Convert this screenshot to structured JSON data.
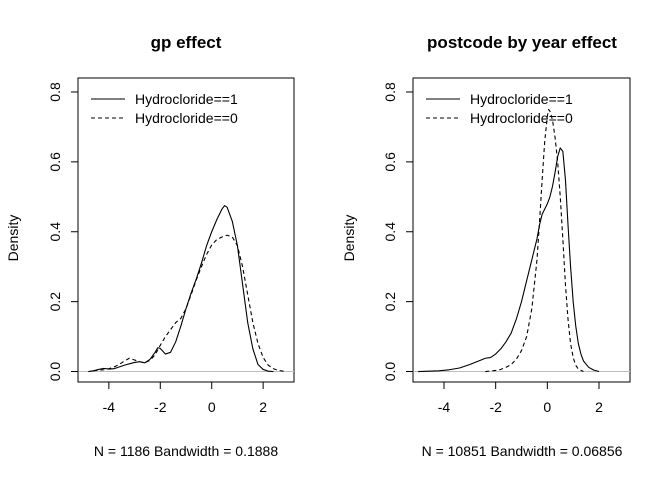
{
  "chart_data": [
    {
      "type": "line",
      "title": "gp effect",
      "xlabel": "N = 1186   Bandwidth = 0.1888",
      "ylabel": "Density",
      "xlim": [
        -5.2,
        3.2
      ],
      "ylim": [
        -0.03,
        0.84
      ],
      "xticks": [
        "-4",
        "-2",
        "0",
        "2"
      ],
      "yticks": [
        "0.0",
        "0.2",
        "0.4",
        "0.6",
        "0.8"
      ],
      "grid": false,
      "baseline": 0,
      "legend": {
        "position": "top-left",
        "entries": [
          "Hydrocloride==1",
          "Hydrocloride==0"
        ]
      },
      "series": [
        {
          "name": "Hydrocloride==1",
          "style": "solid",
          "x": [
            -4.8,
            -4.6,
            -4.4,
            -4.2,
            -4.0,
            -3.8,
            -3.6,
            -3.4,
            -3.2,
            -3.0,
            -2.8,
            -2.6,
            -2.4,
            -2.2,
            -2.1,
            -2.0,
            -1.9,
            -1.8,
            -1.6,
            -1.4,
            -1.2,
            -1.0,
            -0.8,
            -0.6,
            -0.4,
            -0.2,
            0.0,
            0.2,
            0.4,
            0.5,
            0.6,
            0.8,
            1.0,
            1.2,
            1.4,
            1.6,
            1.8,
            2.0,
            2.2,
            2.4
          ],
          "y": [
            0.0,
            0.002,
            0.006,
            0.009,
            0.007,
            0.008,
            0.013,
            0.018,
            0.022,
            0.026,
            0.028,
            0.025,
            0.035,
            0.055,
            0.068,
            0.066,
            0.058,
            0.05,
            0.055,
            0.085,
            0.13,
            0.18,
            0.225,
            0.265,
            0.31,
            0.36,
            0.4,
            0.435,
            0.465,
            0.475,
            0.47,
            0.43,
            0.36,
            0.25,
            0.14,
            0.065,
            0.02,
            0.006,
            0.001,
            0.0
          ]
        },
        {
          "name": "Hydrocloride==0",
          "style": "dashed",
          "x": [
            -4.6,
            -4.4,
            -4.2,
            -4.0,
            -3.8,
            -3.6,
            -3.4,
            -3.2,
            -3.0,
            -2.8,
            -2.6,
            -2.4,
            -2.2,
            -2.0,
            -1.8,
            -1.6,
            -1.4,
            -1.2,
            -1.0,
            -0.8,
            -0.6,
            -0.4,
            -0.2,
            0.0,
            0.2,
            0.4,
            0.6,
            0.8,
            1.0,
            1.2,
            1.4,
            1.6,
            1.8,
            2.0,
            2.2,
            2.4,
            2.6,
            2.8
          ],
          "y": [
            0.002,
            0.004,
            0.005,
            0.008,
            0.013,
            0.02,
            0.03,
            0.038,
            0.033,
            0.028,
            0.025,
            0.032,
            0.048,
            0.075,
            0.1,
            0.12,
            0.14,
            0.152,
            0.18,
            0.22,
            0.262,
            0.3,
            0.335,
            0.362,
            0.378,
            0.385,
            0.39,
            0.385,
            0.36,
            0.3,
            0.22,
            0.14,
            0.08,
            0.04,
            0.018,
            0.008,
            0.003,
            0.001
          ]
        }
      ]
    },
    {
      "type": "line",
      "title": "postcode by year effect",
      "xlabel": "N = 10851   Bandwidth = 0.06856",
      "ylabel": "Density",
      "xlim": [
        -5.2,
        3.2
      ],
      "ylim": [
        -0.03,
        0.84
      ],
      "xticks": [
        "-4",
        "-2",
        "0",
        "2"
      ],
      "yticks": [
        "0.0",
        "0.2",
        "0.4",
        "0.6",
        "0.8"
      ],
      "grid": false,
      "baseline": 0,
      "legend": {
        "position": "top-left",
        "entries": [
          "Hydrocloride==1",
          "Hydrocloride==0"
        ]
      },
      "series": [
        {
          "name": "Hydrocloride==1",
          "style": "solid",
          "x": [
            -5.0,
            -4.6,
            -4.2,
            -3.8,
            -3.4,
            -3.0,
            -2.6,
            -2.4,
            -2.2,
            -2.0,
            -1.8,
            -1.6,
            -1.4,
            -1.2,
            -1.0,
            -0.8,
            -0.6,
            -0.4,
            -0.3,
            -0.2,
            -0.1,
            0.0,
            0.1,
            0.2,
            0.3,
            0.4,
            0.5,
            0.6,
            0.7,
            0.8,
            0.9,
            1.0,
            1.1,
            1.2,
            1.3,
            1.4,
            1.6,
            1.8,
            2.0
          ],
          "y": [
            0.0,
            0.001,
            0.002,
            0.005,
            0.01,
            0.02,
            0.032,
            0.038,
            0.04,
            0.05,
            0.065,
            0.085,
            0.11,
            0.15,
            0.2,
            0.26,
            0.32,
            0.38,
            0.42,
            0.45,
            0.465,
            0.48,
            0.5,
            0.53,
            0.57,
            0.615,
            0.64,
            0.63,
            0.55,
            0.42,
            0.3,
            0.2,
            0.13,
            0.08,
            0.05,
            0.03,
            0.012,
            0.004,
            0.0
          ]
        },
        {
          "name": "Hydrocloride==0",
          "style": "dashed",
          "x": [
            -2.4,
            -2.0,
            -1.8,
            -1.6,
            -1.4,
            -1.2,
            -1.0,
            -0.8,
            -0.6,
            -0.4,
            -0.3,
            -0.2,
            -0.1,
            0.0,
            0.05,
            0.1,
            0.2,
            0.3,
            0.4,
            0.5,
            0.6,
            0.7,
            0.8,
            0.9,
            1.0,
            1.1,
            1.2,
            1.4
          ],
          "y": [
            0.0,
            0.003,
            0.006,
            0.012,
            0.02,
            0.035,
            0.06,
            0.1,
            0.18,
            0.32,
            0.43,
            0.55,
            0.66,
            0.73,
            0.75,
            0.745,
            0.72,
            0.67,
            0.6,
            0.5,
            0.38,
            0.25,
            0.15,
            0.08,
            0.04,
            0.018,
            0.007,
            0.0
          ]
        }
      ]
    }
  ]
}
